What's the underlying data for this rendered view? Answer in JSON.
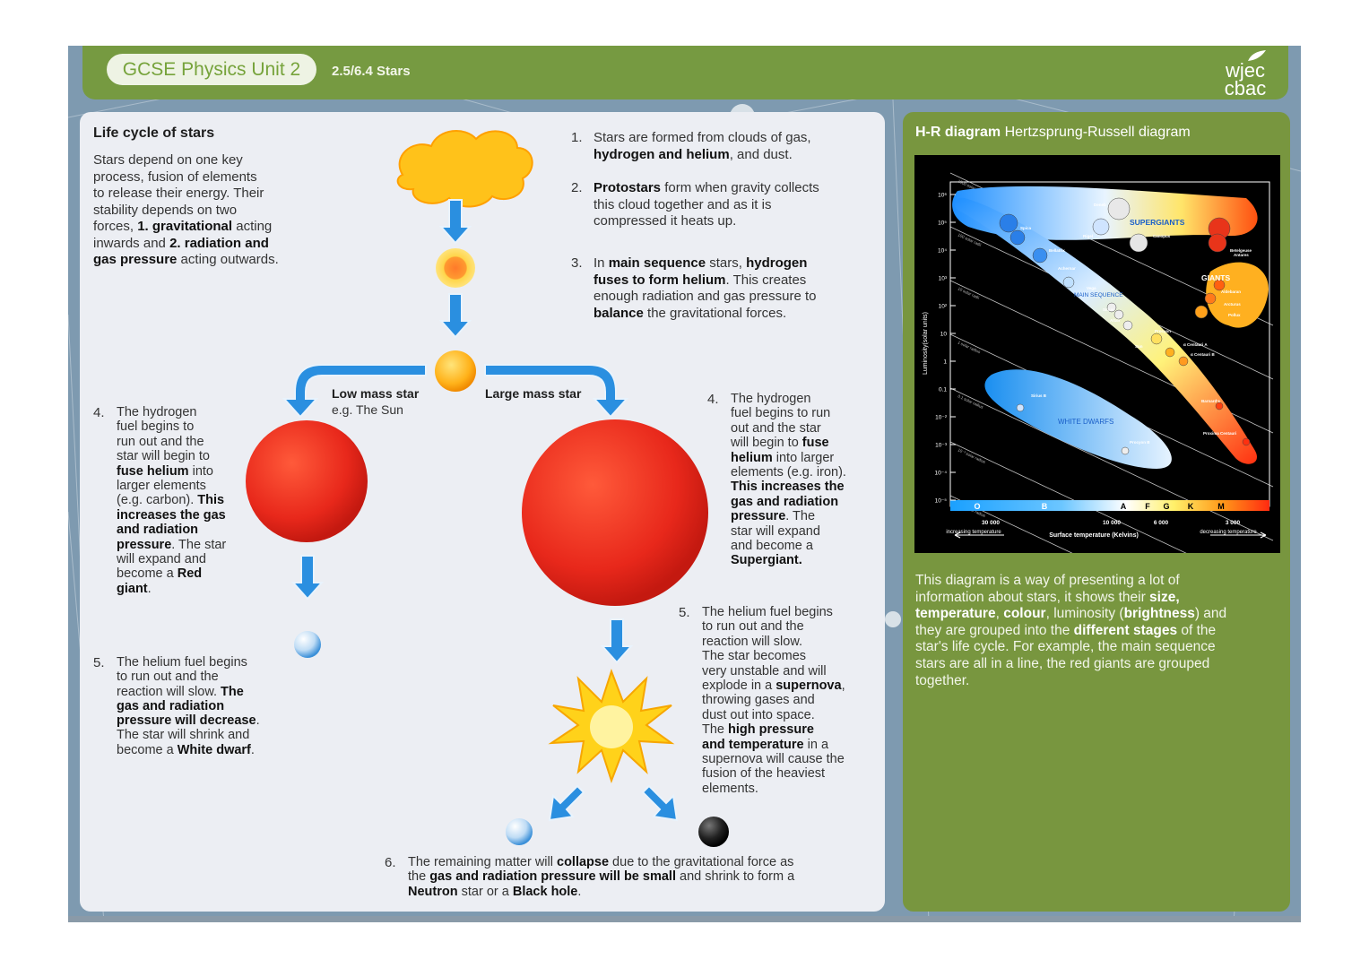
{
  "header": {
    "pill": "GCSE Physics Unit 2",
    "subtitle": "2.5/6.4 Stars",
    "logo_top": "wjec",
    "logo_bottom": "cbac"
  },
  "left": {
    "heading": "Life cycle of stars",
    "intro": [
      {
        "t": "Stars depend on one key",
        "b": false,
        "br": true
      },
      {
        "t": "process, fusion of elements",
        "b": false,
        "br": true
      },
      {
        "t": "to release their energy. Their",
        "b": false,
        "br": true
      },
      {
        "t": "stability depends on two",
        "b": false,
        "br": true
      },
      {
        "t": "forces, ",
        "b": false
      },
      {
        "t": "1. gravitational",
        "b": true
      },
      {
        "t": " acting",
        "b": false,
        "br": true
      },
      {
        "t": "inwards and ",
        "b": false
      },
      {
        "t": "2. radiation and",
        "b": true,
        "br": true
      },
      {
        "t": "gas pressure",
        "b": true
      },
      {
        "t": " acting outwards.",
        "b": false
      }
    ],
    "step1": {
      "n": "1.",
      "runs": [
        {
          "t": "Stars are formed from clouds of gas,",
          "br": true
        },
        {
          "t": "hydrogen and helium",
          "b": true
        },
        {
          "t": ", and dust."
        }
      ]
    },
    "step2": {
      "n": "2.",
      "runs": [
        {
          "t": "Protostars",
          "b": true
        },
        {
          "t": " form when gravity collects",
          "br": true
        },
        {
          "t": "this cloud together and as it is",
          "br": true
        },
        {
          "t": "compressed it heats up."
        }
      ]
    },
    "step3": {
      "n": "3.",
      "runs": [
        {
          "t": "In "
        },
        {
          "t": "main sequence",
          "b": true
        },
        {
          "t": " stars, "
        },
        {
          "t": "hydrogen",
          "b": true,
          "br": true
        },
        {
          "t": "fuses to form helium",
          "b": true
        },
        {
          "t": ". This creates",
          "br": true
        },
        {
          "t": "enough radiation and gas pressure to",
          "br": true
        },
        {
          "t": "balance",
          "b": true
        },
        {
          "t": " the gravitational forces."
        }
      ]
    },
    "low_label": "Low mass star",
    "low_sub": "e.g. The Sun",
    "large_label": "Large mass star",
    "low4": {
      "n": "4.",
      "runs": [
        {
          "t": "The hydrogen",
          "br": true
        },
        {
          "t": "fuel begins to",
          "br": true
        },
        {
          "t": "run out and the",
          "br": true
        },
        {
          "t": "star will begin to",
          "br": true
        },
        {
          "t": "fuse helium",
          "b": true
        },
        {
          "t": " into",
          "br": true
        },
        {
          "t": "larger elements",
          "br": true
        },
        {
          "t": "(e.g. carbon). "
        },
        {
          "t": "This",
          "b": true,
          "br": true
        },
        {
          "t": "increases the gas",
          "b": true,
          "br": true
        },
        {
          "t": "and radiation",
          "b": true,
          "br": true
        },
        {
          "t": "pressure",
          "b": true
        },
        {
          "t": ". The star",
          "br": true
        },
        {
          "t": "will expand and",
          "br": true
        },
        {
          "t": "become a "
        },
        {
          "t": "Red",
          "b": true,
          "br": true
        },
        {
          "t": "giant",
          "b": true
        },
        {
          "t": "."
        }
      ]
    },
    "low5": {
      "n": "5.",
      "runs": [
        {
          "t": "The helium fuel begins",
          "br": true
        },
        {
          "t": "to run out and the",
          "br": true
        },
        {
          "t": "reaction will slow. "
        },
        {
          "t": "The",
          "b": true,
          "br": true
        },
        {
          "t": "gas and radiation",
          "b": true,
          "br": true
        },
        {
          "t": "pressure will decrease",
          "b": true
        },
        {
          "t": ".",
          "br": true
        },
        {
          "t": "The star will shrink and",
          "br": true
        },
        {
          "t": "become a "
        },
        {
          "t": "White dwarf",
          "b": true
        },
        {
          "t": "."
        }
      ]
    },
    "large4": {
      "n": "4.",
      "runs": [
        {
          "t": "The hydrogen",
          "br": true
        },
        {
          "t": "fuel begins to run",
          "br": true
        },
        {
          "t": "out and the star",
          "br": true
        },
        {
          "t": "will begin to "
        },
        {
          "t": "fuse",
          "b": true,
          "br": true
        },
        {
          "t": "helium",
          "b": true
        },
        {
          "t": " into larger",
          "br": true
        },
        {
          "t": "elements (e.g. iron).",
          "br": true
        },
        {
          "t": "This increases the",
          "b": true,
          "br": true
        },
        {
          "t": "gas and radiation",
          "b": true,
          "br": true
        },
        {
          "t": "pressure",
          "b": true
        },
        {
          "t": ". The",
          "br": true
        },
        {
          "t": "star will expand",
          "br": true
        },
        {
          "t": "and become a",
          "br": true
        },
        {
          "t": "Supergiant.",
          "b": true
        }
      ]
    },
    "large5": {
      "n": "5.",
      "runs": [
        {
          "t": "The helium fuel begins",
          "br": true
        },
        {
          "t": "to run out and the",
          "br": true
        },
        {
          "t": "reaction will slow.",
          "br": true
        },
        {
          "t": "The star becomes",
          "br": true
        },
        {
          "t": "very unstable and will",
          "br": true
        },
        {
          "t": "explode in a "
        },
        {
          "t": "supernova",
          "b": true
        },
        {
          "t": ",",
          "br": true
        },
        {
          "t": "throwing gases and",
          "br": true
        },
        {
          "t": "dust out into space.",
          "br": true
        },
        {
          "t": "The "
        },
        {
          "t": "high pressure",
          "b": true,
          "br": true
        },
        {
          "t": "and temperature",
          "b": true
        },
        {
          "t": " in a",
          "br": true
        },
        {
          "t": "supernova will cause the",
          "br": true
        },
        {
          "t": "fusion of the heaviest",
          "br": true
        },
        {
          "t": "elements."
        }
      ]
    },
    "step6": {
      "n": "6.",
      "runs": [
        {
          "t": "The remaining matter will "
        },
        {
          "t": "collapse",
          "b": true
        },
        {
          "t": " due to the gravitational force as",
          "br": true
        },
        {
          "t": "the "
        },
        {
          "t": "gas and radiation pressure will be small",
          "b": true
        },
        {
          "t": " and shrink to form a",
          "br": true
        },
        {
          "t": "Neutron",
          "b": true
        },
        {
          "t": " star or a "
        },
        {
          "t": "Black hole",
          "b": true
        },
        {
          "t": "."
        }
      ]
    }
  },
  "right": {
    "title_bold": "H-R diagram",
    "title_rest": " Hertzsprung-Russell diagram",
    "desc": [
      {
        "t": "This diagram is a way of presenting a lot of",
        "br": true
      },
      {
        "t": "information about stars, it shows their "
      },
      {
        "t": "size,",
        "b": true,
        "br": true
      },
      {
        "t": "temperature",
        "b": true
      },
      {
        "t": ", "
      },
      {
        "t": "colour",
        "b": true
      },
      {
        "t": ", luminosity ("
      },
      {
        "t": "brightness",
        "b": true
      },
      {
        "t": ") and",
        "br": true
      },
      {
        "t": "they are grouped into the "
      },
      {
        "t": "different stages",
        "b": true
      },
      {
        "t": " of the",
        "br": true
      },
      {
        "t": "star's life cycle. For example, the main sequence",
        "br": true
      },
      {
        "t": "stars are all in a line, the red giants are grouped",
        "br": true
      },
      {
        "t": "together."
      }
    ],
    "hr": {
      "y_axis_label": "Luminosity(solar units)",
      "y_ticks": [
        "10⁶",
        "10⁵",
        "10⁴",
        "10³",
        "10²",
        "10",
        "1",
        "0.1",
        "10⁻²",
        "10⁻³",
        "10⁻⁴",
        "10⁻⁵"
      ],
      "x_ticks": [
        "30 000",
        "10 000",
        "6 000",
        "3 000"
      ],
      "x_label": "Surface temperature (Kelvins)",
      "increasing": "increasing temperature",
      "decreasing": "decreasing temperature",
      "spectral": [
        "O",
        "B",
        "A",
        "F",
        "G",
        "K",
        "M"
      ],
      "regions": {
        "supergiants": "SUPERGIANTS",
        "giants": "GIANTS",
        "main_sequence": "MAIN SEQUENCE",
        "white_dwarfs": "WHITE DWARFS"
      },
      "star_names": [
        "Deneb",
        "Rigel",
        "Betelgeuse",
        "Canopus",
        "Antares",
        "Spica",
        "Bellatrix",
        "Achernar",
        "Vega",
        "Sirius",
        "Altair",
        "Procyon",
        "Sun",
        "Aldebaran",
        "Arcturus",
        "Pollux",
        "α Centauri A",
        "α Centauri B",
        "Barnard's",
        "Proxima Centauri",
        "Sirius B",
        "Procyon B"
      ],
      "radius_lines": [
        "1000 solar radii",
        "100 solar radii",
        "10 solar radii",
        "1 solar radius",
        "0.1 solar radius",
        "10⁻² solar radius",
        "10⁻³ solar radius"
      ]
    }
  }
}
